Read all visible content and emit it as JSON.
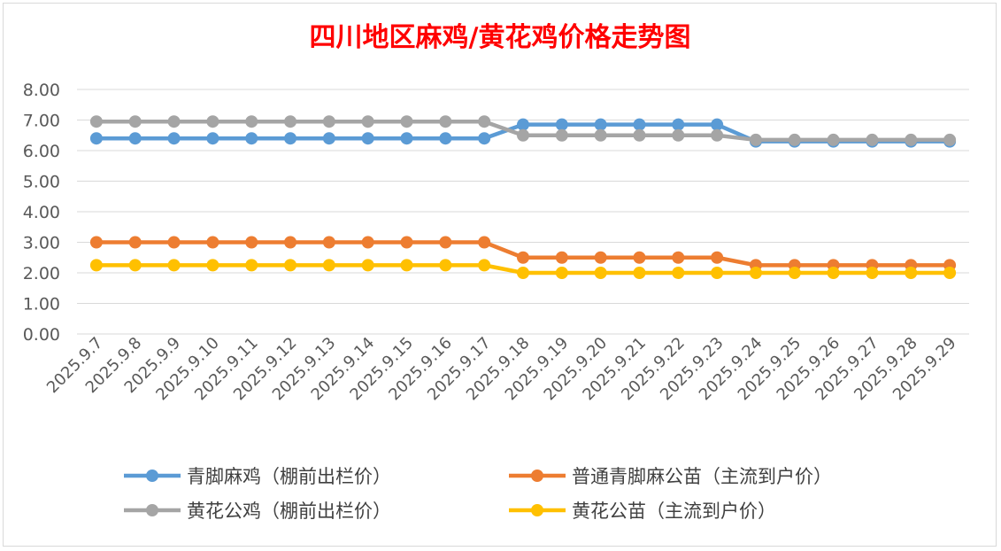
{
  "chart_data": {
    "type": "line",
    "title": "四川地区麻鸡/黄花鸡价格走势图",
    "xlabel": "",
    "ylabel": "",
    "ylim": [
      0,
      8
    ],
    "yticks": [
      "0.00",
      "1.00",
      "2.00",
      "3.00",
      "4.00",
      "5.00",
      "6.00",
      "7.00",
      "8.00"
    ],
    "grid": true,
    "legend_position": "bottom",
    "categories": [
      "2025.9.7",
      "2025.9.8",
      "2025.9.9",
      "2025.9.10",
      "2025.9.11",
      "2025.9.12",
      "2025.9.13",
      "2025.9.14",
      "2025.9.15",
      "2025.9.16",
      "2025.9.17",
      "2025.9.18",
      "2025.9.19",
      "2025.9.20",
      "2025.9.21",
      "2025.9.22",
      "2025.9.23",
      "2025.9.24",
      "2025.9.25",
      "2025.9.26",
      "2025.9.27",
      "2025.9.28",
      "2025.9.29"
    ],
    "series": [
      {
        "name": "青脚麻鸡（棚前出栏价）",
        "color": "#5b9bd5",
        "values": [
          6.4,
          6.4,
          6.4,
          6.4,
          6.4,
          6.4,
          6.4,
          6.4,
          6.4,
          6.4,
          6.4,
          6.85,
          6.85,
          6.85,
          6.85,
          6.85,
          6.85,
          6.3,
          6.3,
          6.3,
          6.3,
          6.3,
          6.3
        ]
      },
      {
        "name": "普通青脚麻公苗（主流到户价）",
        "color": "#ed7d31",
        "values": [
          3.0,
          3.0,
          3.0,
          3.0,
          3.0,
          3.0,
          3.0,
          3.0,
          3.0,
          3.0,
          3.0,
          2.5,
          2.5,
          2.5,
          2.5,
          2.5,
          2.5,
          2.25,
          2.25,
          2.25,
          2.25,
          2.25,
          2.25
        ]
      },
      {
        "name": "黄花公鸡（棚前出栏价）",
        "color": "#a5a5a5",
        "values": [
          6.95,
          6.95,
          6.95,
          6.95,
          6.95,
          6.95,
          6.95,
          6.95,
          6.95,
          6.95,
          6.95,
          6.5,
          6.5,
          6.5,
          6.5,
          6.5,
          6.5,
          6.35,
          6.35,
          6.35,
          6.35,
          6.35,
          6.35
        ]
      },
      {
        "name": "黄花公苗（主流到户价）",
        "color": "#ffc000",
        "values": [
          2.25,
          2.25,
          2.25,
          2.25,
          2.25,
          2.25,
          2.25,
          2.25,
          2.25,
          2.25,
          2.25,
          2.0,
          2.0,
          2.0,
          2.0,
          2.0,
          2.0,
          2.0,
          2.0,
          2.0,
          2.0,
          2.0,
          2.0
        ]
      }
    ]
  }
}
